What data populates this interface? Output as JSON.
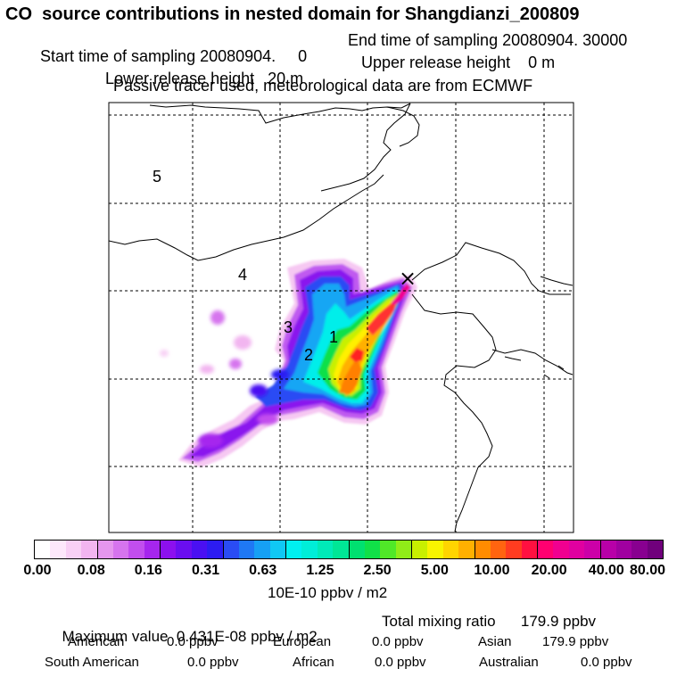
{
  "header": {
    "title": "CO  source contributions in nested domain for Shangdianzi_200809",
    "start_time": "Start time of sampling 20080904.     0",
    "end_time": "End time of sampling 20080904. 30000",
    "lower_release": "Lower release height   20 m",
    "upper_release": "Upper release height    0 m",
    "note": "Passive tracer used, meteorological data are from ECMWF"
  },
  "map": {
    "receptor_marker": "×",
    "region_labels": [
      "1",
      "2",
      "3",
      "4",
      "5"
    ],
    "colors": {
      "frame": "#000000",
      "coast": "#000000",
      "grid": "#000000"
    }
  },
  "colorbar": {
    "tick_labels": [
      "0.00",
      "0.08",
      "0.16",
      "0.31",
      "0.63",
      "1.25",
      "2.50",
      "5.00",
      "10.00",
      "20.00",
      "40.00",
      "80.00"
    ],
    "unit": "10E-10 ppbv / m2",
    "colors": [
      "#ffffff",
      "#fde8fb",
      "#f8d0f5",
      "#f2b5f0",
      "#e596ee",
      "#d674ee",
      "#c24eee",
      "#a626ee",
      "#8c10ee",
      "#6a0ef0",
      "#4a10f2",
      "#2c1cf2",
      "#2a4cf4",
      "#1f78f4",
      "#16a0f4",
      "#10c8f4",
      "#00f0f0",
      "#00eed8",
      "#00eab8",
      "#00e696",
      "#00e070",
      "#10e048",
      "#50e828",
      "#90ec18",
      "#c8f000",
      "#f8f400",
      "#ffd400",
      "#ffb000",
      "#ff8c00",
      "#ff6410",
      "#ff3c20",
      "#ff1040",
      "#ff0070",
      "#f00090",
      "#e000a0",
      "#cc00a8",
      "#b800a8",
      "#a000a0",
      "#880090",
      "#70007c"
    ]
  },
  "stats": {
    "max_label": "Maximum value  0.431E-08 ppbv / m2",
    "total_label": "Total mixing ratio      179.9 ppbv",
    "american_label": "American",
    "american_val": "0.0 ppbv",
    "european_label": "European",
    "european_val": "0.0 ppbv",
    "asian_label": "Asian",
    "asian_val": "179.9 ppbv",
    "south_american_label": "South American",
    "south_american_val": "0.0 ppbv",
    "african_label": "African",
    "african_val": "0.0 ppbv",
    "australian_label": "Australian",
    "australian_val": "0.0 ppbv"
  }
}
